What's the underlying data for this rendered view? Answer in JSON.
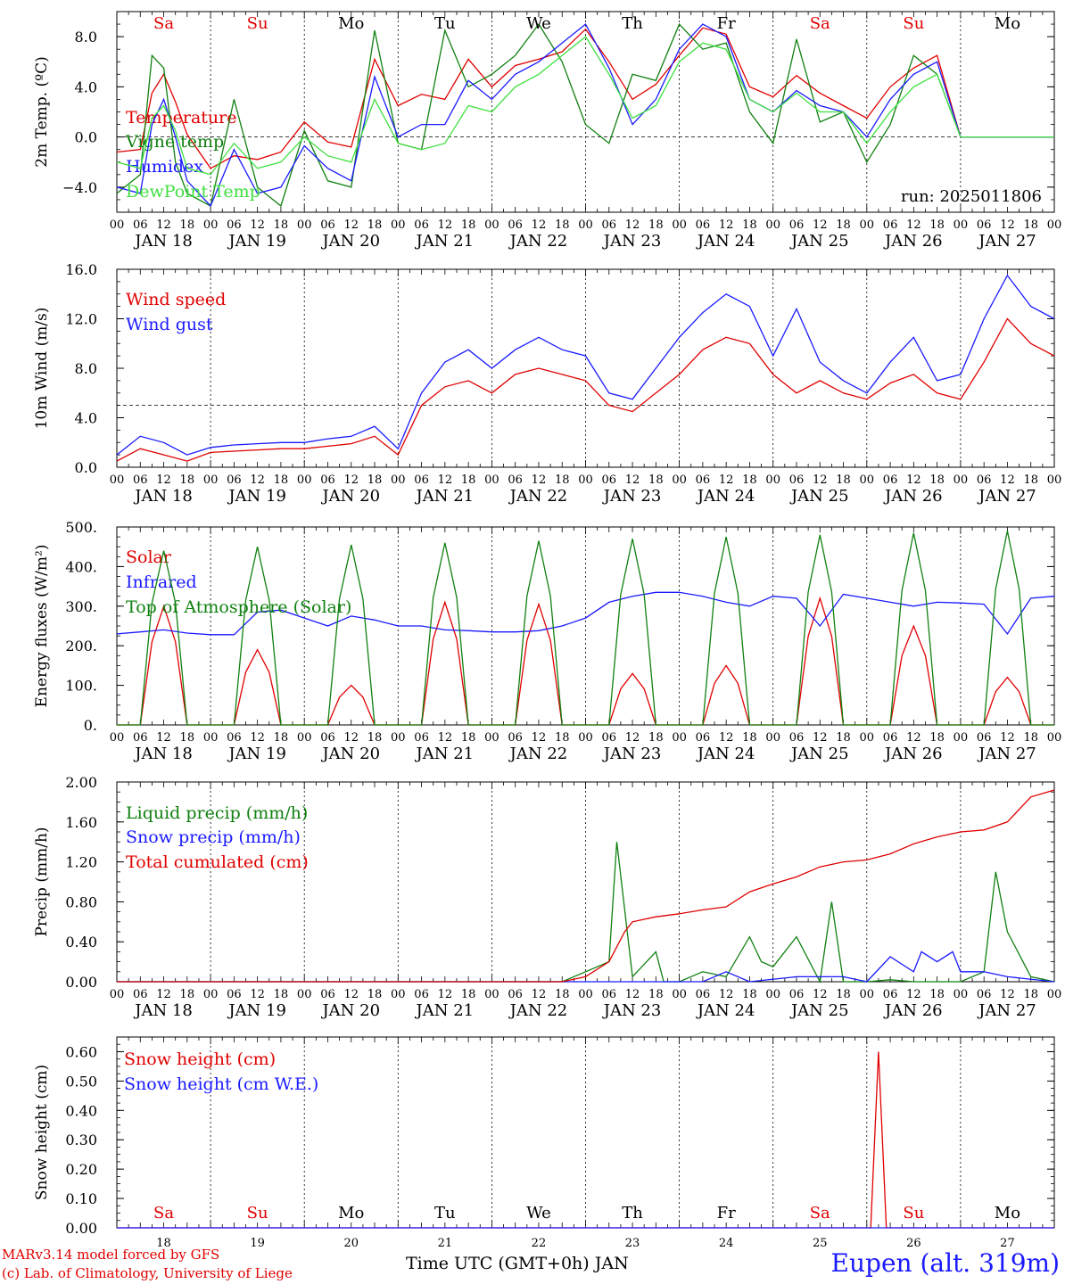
{
  "meta": {
    "run": "run: 2025011806",
    "credit_line1": "MARv3.14 model forced by GFS",
    "credit_line2": "(c) Lab. of Climatology, University of Liege",
    "x_title": "Time UTC (GMT+0h) JAN",
    "station": "Eupen (alt. 319m)"
  },
  "colors": {
    "red": "#e00000",
    "darkgreen": "#108010",
    "blue": "#1a1aff",
    "lightgreen": "#40e040"
  },
  "x_axis": {
    "start_day": 18,
    "num_days": 10,
    "date_labels": [
      "JAN 18",
      "JAN 19",
      "JAN 20",
      "JAN 21",
      "JAN 22",
      "JAN 23",
      "JAN 24",
      "JAN 25",
      "JAN 26",
      "JAN 27"
    ],
    "hour_labels": [
      "00",
      "06",
      "12",
      "18"
    ],
    "weekday_labels": [
      "Sa",
      "Su",
      "Mo",
      "Tu",
      "We",
      "Th",
      "Fr",
      "Sa",
      "Su",
      "Mo"
    ],
    "weekday_colors": [
      "red",
      "red",
      "black",
      "black",
      "black",
      "black",
      "black",
      "red",
      "red",
      "black"
    ],
    "day_numbers": [
      "18",
      "19",
      "20",
      "21",
      "22",
      "23",
      "24",
      "25",
      "26",
      "27"
    ]
  },
  "chart_data": [
    {
      "type": "line",
      "ylabel": "2m Temp. (ºC)",
      "ylim": [
        -6,
        10
      ],
      "yticks": [
        -4.0,
        0.0,
        4.0,
        8.0
      ],
      "ytick_labels": [
        "−4.0",
        "0.0",
        "4.0",
        "8.0"
      ],
      "ref_line": 0,
      "x_unit": "hours since JAN 18 00 UTC",
      "series": [
        {
          "name": "Temperature",
          "color": "red",
          "x": [
            0,
            6,
            9,
            12,
            15,
            18,
            24,
            30,
            36,
            42,
            48,
            54,
            60,
            66,
            72,
            78,
            84,
            90,
            96,
            102,
            108,
            114,
            120,
            126,
            132,
            138,
            144,
            150,
            156,
            162,
            168,
            174,
            180,
            186,
            192,
            198,
            204,
            210,
            216,
            222,
            228,
            234,
            240
          ],
          "y": [
            -1.2,
            -1.0,
            3.5,
            5.0,
            2.8,
            0.2,
            -2.5,
            -1.5,
            -1.8,
            -1.2,
            1.2,
            -0.4,
            -0.8,
            6.2,
            2.5,
            3.4,
            3.0,
            6.2,
            4.0,
            5.7,
            6.2,
            6.8,
            8.6,
            6.0,
            3.0,
            4.2,
            6.5,
            8.7,
            8.2,
            4.0,
            3.2,
            4.9,
            3.5,
            2.5,
            1.5,
            4.0,
            5.5,
            6.5,
            0,
            0,
            0,
            0,
            0
          ]
        },
        {
          "name": "Vigne temp",
          "color": "darkgreen",
          "x": [
            0,
            6,
            9,
            12,
            15,
            18,
            24,
            30,
            36,
            42,
            48,
            54,
            60,
            66,
            72,
            78,
            84,
            90,
            96,
            102,
            108,
            114,
            120,
            126,
            132,
            138,
            144,
            150,
            156,
            162,
            168,
            174,
            180,
            186,
            192,
            198,
            204,
            210,
            216,
            222,
            228,
            234,
            240
          ],
          "y": [
            -4.5,
            -3.0,
            6.5,
            5.5,
            -2.0,
            -4.5,
            -5.5,
            3.0,
            -4.0,
            -5.5,
            0.5,
            -3.5,
            -4.0,
            8.5,
            -0.5,
            -1.0,
            8.5,
            4.0,
            5.0,
            6.5,
            9.0,
            6.0,
            1.0,
            -0.5,
            5.0,
            4.5,
            9.0,
            7.0,
            7.5,
            2.0,
            -0.5,
            7.8,
            1.2,
            2.0,
            -2.0,
            1.0,
            6.5,
            5.0,
            0,
            0,
            0,
            0,
            0
          ]
        },
        {
          "name": "Humidex",
          "color": "blue",
          "x": [
            0,
            6,
            9,
            12,
            15,
            18,
            24,
            30,
            36,
            42,
            48,
            54,
            60,
            66,
            72,
            78,
            84,
            90,
            96,
            102,
            108,
            114,
            120,
            126,
            132,
            138,
            144,
            150,
            156,
            162,
            168,
            174,
            180,
            186,
            192,
            198,
            204,
            210,
            216,
            222,
            228,
            234,
            240
          ],
          "y": [
            -4.0,
            -4.5,
            1.0,
            3.0,
            0.0,
            -3.5,
            -5.5,
            -1.0,
            -4.5,
            -4.0,
            -0.7,
            -2.5,
            -3.5,
            4.8,
            0.0,
            1.0,
            1.0,
            4.5,
            3.0,
            5.0,
            6.0,
            7.5,
            9.0,
            5.5,
            1.0,
            3.0,
            7.0,
            9.0,
            8.0,
            3.0,
            2.0,
            3.7,
            2.5,
            2.0,
            0.0,
            3.0,
            5.0,
            6.0,
            0,
            0,
            0,
            0,
            0
          ]
        },
        {
          "name": "DewPoint Temp",
          "color": "lightgreen",
          "x": [
            0,
            6,
            9,
            12,
            15,
            18,
            24,
            30,
            36,
            42,
            48,
            54,
            60,
            66,
            72,
            78,
            84,
            90,
            96,
            102,
            108,
            114,
            120,
            126,
            132,
            138,
            144,
            150,
            156,
            162,
            168,
            174,
            180,
            186,
            192,
            198,
            204,
            210,
            216,
            222,
            228,
            234,
            240
          ],
          "y": [
            -2.0,
            -2.5,
            1.5,
            2.5,
            0.5,
            -2.5,
            -3.0,
            -0.5,
            -2.5,
            -2.0,
            0.0,
            -1.5,
            -2.0,
            3.0,
            -0.5,
            -1.0,
            -0.5,
            2.5,
            2.0,
            4.0,
            5.0,
            6.5,
            8.0,
            5.0,
            1.5,
            2.5,
            6.0,
            7.5,
            7.0,
            3.0,
            2.0,
            3.5,
            2.0,
            2.0,
            -0.5,
            2.0,
            4.0,
            5.0,
            0,
            0,
            0,
            0,
            0
          ]
        }
      ]
    },
    {
      "type": "line",
      "ylabel": "10m Wind (m/s)",
      "ylim": [
        0,
        16
      ],
      "yticks": [
        0.0,
        4.0,
        8.0,
        12.0,
        16.0
      ],
      "ytick_labels": [
        "0.0",
        "4.0",
        "8.0",
        "12.0",
        "16.0"
      ],
      "ref_line": 5,
      "x_unit": "hours since JAN 18 00 UTC",
      "series": [
        {
          "name": "Wind speed",
          "color": "red",
          "x": [
            0,
            6,
            12,
            18,
            24,
            30,
            36,
            42,
            48,
            54,
            60,
            66,
            72,
            78,
            84,
            90,
            96,
            102,
            108,
            114,
            120,
            126,
            132,
            138,
            144,
            150,
            156,
            162,
            168,
            174,
            180,
            186,
            192,
            198,
            204,
            210,
            216,
            222,
            228,
            234,
            240
          ],
          "y": [
            0.5,
            1.5,
            1.0,
            0.5,
            1.2,
            1.3,
            1.4,
            1.5,
            1.5,
            1.7,
            1.9,
            2.5,
            1.0,
            5.0,
            6.5,
            7.0,
            6.0,
            7.5,
            8.0,
            7.5,
            7.0,
            5.0,
            4.5,
            6.0,
            7.5,
            9.5,
            10.5,
            10.0,
            7.5,
            6.0,
            7.0,
            6.0,
            5.5,
            6.8,
            7.5,
            6.0,
            5.5,
            8.5,
            12.0,
            10.0,
            9.0
          ]
        },
        {
          "name": "Wind gust",
          "color": "blue",
          "x": [
            0,
            6,
            12,
            18,
            24,
            30,
            36,
            42,
            48,
            54,
            60,
            66,
            72,
            78,
            84,
            90,
            96,
            102,
            108,
            114,
            120,
            126,
            132,
            138,
            144,
            150,
            156,
            162,
            168,
            174,
            180,
            186,
            192,
            198,
            204,
            210,
            216,
            222,
            228,
            234,
            240
          ],
          "y": [
            1.0,
            2.5,
            2.0,
            1.0,
            1.6,
            1.8,
            1.9,
            2.0,
            2.0,
            2.3,
            2.5,
            3.3,
            1.5,
            6.0,
            8.5,
            9.5,
            8.0,
            9.5,
            10.5,
            9.5,
            9.0,
            6.0,
            5.5,
            8.0,
            10.5,
            12.5,
            14.0,
            13.0,
            9.0,
            12.8,
            8.5,
            7.0,
            6.0,
            8.5,
            10.5,
            7.0,
            7.5,
            12.0,
            15.5,
            13.0,
            12.0
          ]
        }
      ]
    },
    {
      "type": "line",
      "ylabel": "Energy fluxes (W/m²)",
      "ylim": [
        0,
        500
      ],
      "yticks": [
        0,
        100,
        200,
        300,
        400,
        500
      ],
      "ytick_labels": [
        "0.",
        "100.",
        "200.",
        "300.",
        "400.",
        "500."
      ],
      "x_unit": "hours since JAN 18 00 UTC",
      "series": [
        {
          "name": "Solar",
          "color": "red",
          "peaks": [
            [
              12,
              300
            ],
            [
              36,
              190
            ],
            [
              60,
              100
            ],
            [
              84,
              310
            ],
            [
              108,
              305
            ],
            [
              132,
              130
            ],
            [
              156,
              150
            ],
            [
              180,
              320
            ],
            [
              204,
              250
            ],
            [
              228,
              120
            ]
          ]
        },
        {
          "name": "Infrared",
          "color": "blue",
          "x": [
            0,
            6,
            12,
            18,
            24,
            30,
            36,
            42,
            48,
            54,
            60,
            66,
            72,
            78,
            84,
            90,
            96,
            102,
            108,
            114,
            120,
            126,
            132,
            138,
            144,
            150,
            156,
            162,
            168,
            174,
            180,
            186,
            192,
            198,
            204,
            210,
            216,
            222,
            228,
            234,
            240
          ],
          "y": [
            230,
            235,
            240,
            232,
            228,
            228,
            285,
            290,
            270,
            250,
            275,
            265,
            250,
            250,
            240,
            238,
            235,
            235,
            238,
            250,
            270,
            310,
            325,
            335,
            335,
            325,
            310,
            300,
            325,
            320,
            250,
            330,
            320,
            310,
            300,
            310,
            308,
            305,
            230,
            320,
            325
          ]
        },
        {
          "name": "Top of Atmosphere (Solar)",
          "color": "darkgreen",
          "peaks": [
            [
              12,
              440
            ],
            [
              36,
              450
            ],
            [
              60,
              455
            ],
            [
              84,
              460
            ],
            [
              108,
              465
            ],
            [
              132,
              470
            ],
            [
              156,
              475
            ],
            [
              180,
              480
            ],
            [
              204,
              485
            ],
            [
              228,
              490
            ]
          ]
        }
      ]
    },
    {
      "type": "line",
      "ylabel": "Precip (mm/h)",
      "ylim": [
        0,
        2
      ],
      "yticks": [
        0.0,
        0.4,
        0.8,
        1.2,
        1.6,
        2.0
      ],
      "ytick_labels": [
        "0.00",
        "0.40",
        "0.80",
        "1.20",
        "1.60",
        "2.00"
      ],
      "x_unit": "hours since JAN 18 00 UTC",
      "series": [
        {
          "name": "Liquid precip (mm/h)",
          "color": "darkgreen",
          "x": [
            0,
            96,
            114,
            120,
            126,
            128,
            132,
            138,
            140,
            144,
            150,
            156,
            162,
            165,
            168,
            174,
            180,
            183,
            186,
            192,
            198,
            204,
            210,
            216,
            222,
            225,
            228,
            234,
            240
          ],
          "y": [
            0,
            0,
            0,
            0.1,
            0.2,
            1.4,
            0.05,
            0.3,
            0,
            0,
            0.1,
            0.05,
            0.45,
            0.2,
            0.15,
            0.45,
            0,
            0.8,
            0,
            0,
            0.02,
            0,
            0,
            0,
            0.1,
            1.1,
            0.5,
            0.05,
            0
          ]
        },
        {
          "name": "Snow precip (mm/h)",
          "color": "blue",
          "x": [
            0,
            96,
            120,
            150,
            156,
            162,
            174,
            186,
            192,
            198,
            204,
            206,
            210,
            214,
            216,
            222,
            228,
            240
          ],
          "y": [
            0,
            0,
            0,
            0,
            0.1,
            0,
            0.05,
            0.05,
            0,
            0.25,
            0.1,
            0.3,
            0.2,
            0.3,
            0.1,
            0.1,
            0.05,
            0
          ]
        },
        {
          "name": "Total cumulated (cm)",
          "color": "red",
          "x": [
            0,
            96,
            114,
            120,
            126,
            130,
            132,
            138,
            144,
            150,
            156,
            162,
            168,
            174,
            180,
            186,
            192,
            198,
            204,
            210,
            216,
            222,
            228,
            234,
            240
          ],
          "y": [
            0,
            0,
            0,
            0.05,
            0.2,
            0.5,
            0.6,
            0.65,
            0.68,
            0.72,
            0.75,
            0.9,
            0.98,
            1.05,
            1.15,
            1.2,
            1.22,
            1.28,
            1.38,
            1.45,
            1.5,
            1.52,
            1.6,
            1.85,
            1.92
          ]
        }
      ]
    },
    {
      "type": "line",
      "ylabel": "Snow height (cm)",
      "ylim": [
        0,
        0.65
      ],
      "yticks": [
        0.0,
        0.1,
        0.2,
        0.3,
        0.4,
        0.5,
        0.6
      ],
      "ytick_labels": [
        "0.00",
        "0.10",
        "0.20",
        "0.30",
        "0.40",
        "0.50",
        "0.60"
      ],
      "x_unit": "hours since JAN 18 00 UTC",
      "series": [
        {
          "name": "Snow height (cm)",
          "color": "red",
          "x": [
            0,
            193,
            195,
            197,
            240
          ],
          "y": [
            0,
            0,
            0.6,
            0,
            0
          ]
        },
        {
          "name": "Snow height (cm W.E.)",
          "color": "blue",
          "x": [
            0,
            240
          ],
          "y": [
            0,
            0
          ]
        }
      ]
    }
  ]
}
